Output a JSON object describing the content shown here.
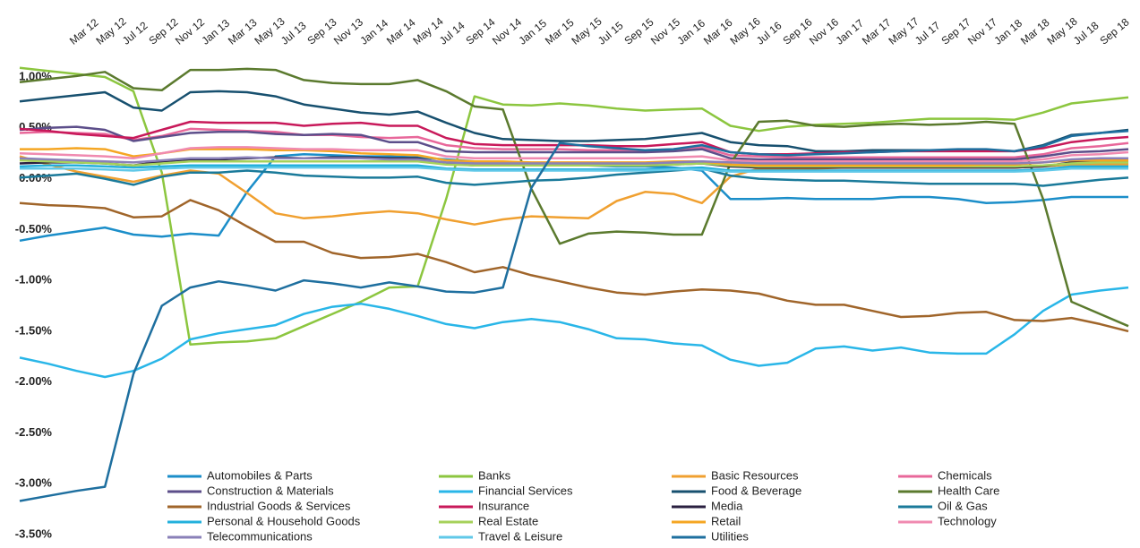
{
  "chart_data": {
    "type": "line",
    "categories": [
      "Mar 12",
      "May 12",
      "Jul 12",
      "Sep 12",
      "Nov 12",
      "Jan 13",
      "Mar 13",
      "May 13",
      "Jul 13",
      "Sep 13",
      "Nov 13",
      "Jan 14",
      "Mar 14",
      "May 14",
      "Jul 14",
      "Sep 14",
      "Nov 14",
      "Jan 15",
      "Mar 15",
      "May 15",
      "Jul 15",
      "Sep 15",
      "Nov 15",
      "Jan 16",
      "Mar 16",
      "May 16",
      "Jul 16",
      "Sep 16",
      "Nov 16",
      "Jan 17",
      "Mar 17",
      "May 17",
      "Jul 17",
      "Sep 17",
      "Nov 17",
      "Jan 18",
      "Mar 18",
      "May 18",
      "Jul 18",
      "Sep 18"
    ],
    "ylim": [
      -3.5,
      1.2
    ],
    "yticks": [
      {
        "value": 1.0,
        "label": "1.00%"
      },
      {
        "value": 0.5,
        "label": "0.50%"
      },
      {
        "value": 0,
        "label": "0.00%"
      },
      {
        "value": -0.5,
        "label": "-0.50%"
      },
      {
        "value": -1.0,
        "label": "-1.00%"
      },
      {
        "value": -1.5,
        "label": "-1.50%"
      },
      {
        "value": -2.0,
        "label": "-2.00%"
      },
      {
        "value": -2.5,
        "label": "-2.50%"
      },
      {
        "value": -3.0,
        "label": "-3.00%"
      },
      {
        "value": -3.5,
        "label": "-3.50%"
      }
    ],
    "grid": false,
    "legend": "bottom",
    "series": [
      {
        "name": "Automobiles & Parts",
        "color": "#1b8ec9",
        "values": [
          -0.61,
          -0.56,
          -0.52,
          -0.48,
          -0.55,
          -0.57,
          -0.54,
          -0.56,
          -0.13,
          0.22,
          0.24,
          0.23,
          0.22,
          0.22,
          0.21,
          0.19,
          0.17,
          0.16,
          0.15,
          0.14,
          0.13,
          0.12,
          0.12,
          0.11,
          0.08,
          -0.2,
          -0.2,
          -0.19,
          -0.2,
          -0.2,
          -0.2,
          -0.18,
          -0.18,
          -0.2,
          -0.24,
          -0.23,
          -0.21,
          -0.18,
          -0.18,
          -0.18
        ]
      },
      {
        "name": "Banks",
        "color": "#8cc63f",
        "values": [
          1.09,
          1.06,
          1.03,
          1.0,
          0.86,
          0.06,
          -1.63,
          -1.61,
          -1.6,
          -1.57,
          -1.45,
          -1.33,
          -1.21,
          -1.07,
          -1.06,
          -0.2,
          0.81,
          0.73,
          0.72,
          0.74,
          0.72,
          0.69,
          0.67,
          0.68,
          0.69,
          0.52,
          0.47,
          0.51,
          0.53,
          0.54,
          0.55,
          0.57,
          0.59,
          0.59,
          0.59,
          0.58,
          0.65,
          0.74,
          0.77,
          0.8
        ]
      },
      {
        "name": "Basic Resources",
        "color": "#f0a030",
        "values": [
          0.22,
          0.14,
          0.07,
          0.02,
          -0.03,
          0.03,
          0.08,
          0.05,
          -0.14,
          -0.34,
          -0.39,
          -0.37,
          -0.34,
          -0.32,
          -0.34,
          -0.4,
          -0.45,
          -0.4,
          -0.37,
          -0.38,
          -0.39,
          -0.22,
          -0.13,
          -0.15,
          -0.24,
          0.02,
          0.1,
          0.1,
          0.1,
          0.11,
          0.11,
          0.11,
          0.11,
          0.11,
          0.11,
          0.11,
          0.12,
          0.14,
          0.14,
          0.14
        ]
      },
      {
        "name": "Chemicals",
        "color": "#e8679a",
        "values": [
          0.45,
          0.46,
          0.45,
          0.44,
          0.38,
          0.42,
          0.49,
          0.48,
          0.47,
          0.46,
          0.43,
          0.43,
          0.41,
          0.4,
          0.41,
          0.33,
          0.3,
          0.29,
          0.29,
          0.29,
          0.28,
          0.28,
          0.28,
          0.29,
          0.31,
          0.23,
          0.22,
          0.21,
          0.21,
          0.21,
          0.21,
          0.21,
          0.21,
          0.21,
          0.21,
          0.21,
          0.24,
          0.3,
          0.32,
          0.35
        ]
      },
      {
        "name": "Construction & Materials",
        "color": "#5c4e8a",
        "values": [
          0.48,
          0.5,
          0.51,
          0.48,
          0.37,
          0.41,
          0.45,
          0.46,
          0.46,
          0.44,
          0.43,
          0.44,
          0.43,
          0.36,
          0.36,
          0.27,
          0.26,
          0.26,
          0.26,
          0.26,
          0.26,
          0.26,
          0.26,
          0.27,
          0.29,
          0.2,
          0.19,
          0.19,
          0.19,
          0.19,
          0.19,
          0.19,
          0.19,
          0.19,
          0.19,
          0.19,
          0.22,
          0.26,
          0.27,
          0.29
        ]
      },
      {
        "name": "Financial Services",
        "color": "#29b6e8",
        "values": [
          -1.76,
          -1.82,
          -1.89,
          -1.95,
          -1.89,
          -1.77,
          -1.58,
          -1.52,
          -1.48,
          -1.44,
          -1.33,
          -1.26,
          -1.23,
          -1.28,
          -1.35,
          -1.43,
          -1.47,
          -1.41,
          -1.38,
          -1.41,
          -1.48,
          -1.57,
          -1.58,
          -1.62,
          -1.64,
          -1.78,
          -1.84,
          -1.81,
          -1.67,
          -1.65,
          -1.69,
          -1.66,
          -1.71,
          -1.72,
          -1.72,
          -1.53,
          -1.3,
          -1.14,
          -1.1,
          -1.07
        ]
      },
      {
        "name": "Food & Beverage",
        "color": "#17506f",
        "values": [
          0.76,
          0.79,
          0.82,
          0.85,
          0.7,
          0.67,
          0.85,
          0.86,
          0.85,
          0.81,
          0.73,
          0.69,
          0.65,
          0.63,
          0.66,
          0.55,
          0.45,
          0.39,
          0.38,
          0.37,
          0.37,
          0.38,
          0.39,
          0.42,
          0.45,
          0.36,
          0.33,
          0.32,
          0.27,
          0.27,
          0.28,
          0.28,
          0.28,
          0.28,
          0.28,
          0.27,
          0.33,
          0.43,
          0.45,
          0.48
        ]
      },
      {
        "name": "Health Care",
        "color": "#5b7a2e",
        "values": [
          0.95,
          0.98,
          1.01,
          1.05,
          0.89,
          0.87,
          1.07,
          1.07,
          1.08,
          1.07,
          0.97,
          0.94,
          0.93,
          0.93,
          0.97,
          0.86,
          0.71,
          0.68,
          -0.1,
          -0.64,
          -0.54,
          -0.52,
          -0.53,
          -0.55,
          -0.55,
          0.15,
          0.56,
          0.57,
          0.52,
          0.51,
          0.53,
          0.54,
          0.53,
          0.54,
          0.56,
          0.54,
          -0.2,
          -1.21,
          -1.33,
          -1.45
        ]
      },
      {
        "name": "Industrial Goods & Services",
        "color": "#a0652a",
        "values": [
          -0.24,
          -0.26,
          -0.27,
          -0.29,
          -0.38,
          -0.37,
          -0.21,
          -0.31,
          -0.47,
          -0.62,
          -0.62,
          -0.73,
          -0.78,
          -0.77,
          -0.74,
          -0.82,
          -0.92,
          -0.87,
          -0.95,
          -1.01,
          -1.07,
          -1.12,
          -1.14,
          -1.11,
          -1.09,
          -1.1,
          -1.13,
          -1.2,
          -1.24,
          -1.24,
          -1.3,
          -1.36,
          -1.35,
          -1.32,
          -1.31,
          -1.39,
          -1.4,
          -1.37,
          -1.43,
          -1.5
        ]
      },
      {
        "name": "Insurance",
        "color": "#c8195a",
        "values": [
          0.49,
          0.47,
          0.44,
          0.42,
          0.4,
          0.48,
          0.56,
          0.55,
          0.55,
          0.55,
          0.52,
          0.54,
          0.55,
          0.52,
          0.52,
          0.4,
          0.34,
          0.33,
          0.33,
          0.33,
          0.33,
          0.32,
          0.32,
          0.34,
          0.36,
          0.26,
          0.24,
          0.24,
          0.25,
          0.26,
          0.26,
          0.27,
          0.27,
          0.27,
          0.27,
          0.27,
          0.3,
          0.36,
          0.39,
          0.41
        ]
      },
      {
        "name": "Media",
        "color": "#2a2040",
        "values": [
          0.15,
          0.16,
          0.16,
          0.15,
          0.13,
          0.17,
          0.19,
          0.19,
          0.2,
          0.21,
          0.2,
          0.21,
          0.21,
          0.2,
          0.2,
          0.15,
          0.13,
          0.13,
          0.13,
          0.13,
          0.13,
          0.13,
          0.13,
          0.14,
          0.15,
          0.12,
          0.11,
          0.11,
          0.11,
          0.11,
          0.11,
          0.11,
          0.11,
          0.11,
          0.11,
          0.11,
          0.12,
          0.16,
          0.17,
          0.17
        ]
      },
      {
        "name": "Oil & Gas",
        "color": "#1a7a9a",
        "values": [
          0.01,
          0.03,
          0.05,
          0.0,
          -0.06,
          0.02,
          0.06,
          0.06,
          0.08,
          0.06,
          0.03,
          0.02,
          0.01,
          0.01,
          0.02,
          -0.04,
          -0.06,
          -0.04,
          -0.02,
          -0.01,
          0.01,
          0.04,
          0.06,
          0.08,
          0.1,
          0.03,
          0.0,
          -0.01,
          -0.02,
          -0.02,
          -0.03,
          -0.04,
          -0.05,
          -0.05,
          -0.05,
          -0.05,
          -0.07,
          -0.04,
          -0.01,
          0.01
        ]
      },
      {
        "name": "Personal & Household Goods",
        "color": "#23b0dc",
        "values": [
          0.12,
          0.13,
          0.13,
          0.12,
          0.11,
          0.12,
          0.13,
          0.13,
          0.13,
          0.13,
          0.13,
          0.13,
          0.13,
          0.13,
          0.13,
          0.1,
          0.09,
          0.09,
          0.09,
          0.09,
          0.09,
          0.09,
          0.09,
          0.1,
          0.11,
          0.08,
          0.08,
          0.08,
          0.08,
          0.08,
          0.08,
          0.08,
          0.08,
          0.08,
          0.08,
          0.08,
          0.09,
          0.12,
          0.12,
          0.12
        ]
      },
      {
        "name": "Real Estate",
        "color": "#a6d15a",
        "values": [
          0.18,
          0.17,
          0.16,
          0.15,
          0.13,
          0.15,
          0.17,
          0.17,
          0.17,
          0.17,
          0.17,
          0.17,
          0.17,
          0.17,
          0.17,
          0.14,
          0.13,
          0.13,
          0.13,
          0.13,
          0.13,
          0.13,
          0.13,
          0.14,
          0.15,
          0.13,
          0.12,
          0.12,
          0.12,
          0.12,
          0.12,
          0.12,
          0.12,
          0.12,
          0.12,
          0.12,
          0.13,
          0.15,
          0.16,
          0.16
        ]
      },
      {
        "name": "Retail",
        "color": "#f5a623",
        "values": [
          0.29,
          0.29,
          0.3,
          0.29,
          0.22,
          0.25,
          0.29,
          0.29,
          0.29,
          0.28,
          0.28,
          0.27,
          0.25,
          0.24,
          0.23,
          0.18,
          0.17,
          0.17,
          0.16,
          0.16,
          0.16,
          0.16,
          0.16,
          0.17,
          0.17,
          0.14,
          0.13,
          0.13,
          0.13,
          0.13,
          0.13,
          0.13,
          0.13,
          0.13,
          0.14,
          0.14,
          0.16,
          0.18,
          0.18,
          0.18
        ]
      },
      {
        "name": "Technology",
        "color": "#f08ab0",
        "values": [
          0.25,
          0.24,
          0.23,
          0.22,
          0.2,
          0.25,
          0.3,
          0.31,
          0.31,
          0.3,
          0.29,
          0.29,
          0.28,
          0.28,
          0.28,
          0.22,
          0.2,
          0.2,
          0.2,
          0.2,
          0.2,
          0.2,
          0.2,
          0.21,
          0.22,
          0.18,
          0.17,
          0.17,
          0.17,
          0.17,
          0.17,
          0.17,
          0.17,
          0.17,
          0.17,
          0.17,
          0.19,
          0.23,
          0.24,
          0.26
        ]
      },
      {
        "name": "Telecommunications",
        "color": "#8a80b8",
        "values": [
          0.2,
          0.19,
          0.18,
          0.17,
          0.16,
          0.18,
          0.2,
          0.2,
          0.21,
          0.2,
          0.2,
          0.2,
          0.2,
          0.19,
          0.19,
          0.16,
          0.15,
          0.15,
          0.15,
          0.15,
          0.15,
          0.15,
          0.15,
          0.16,
          0.17,
          0.16,
          0.15,
          0.15,
          0.15,
          0.15,
          0.15,
          0.15,
          0.15,
          0.15,
          0.15,
          0.15,
          0.16,
          0.19,
          0.2,
          0.2
        ]
      },
      {
        "name": "Travel & Leisure",
        "color": "#60c8e8",
        "values": [
          0.1,
          0.1,
          0.1,
          0.09,
          0.08,
          0.1,
          0.11,
          0.11,
          0.11,
          0.11,
          0.11,
          0.11,
          0.11,
          0.11,
          0.11,
          0.09,
          0.08,
          0.08,
          0.08,
          0.08,
          0.08,
          0.08,
          0.08,
          0.09,
          0.09,
          0.07,
          0.07,
          0.07,
          0.07,
          0.07,
          0.07,
          0.07,
          0.07,
          0.07,
          0.07,
          0.07,
          0.08,
          0.1,
          0.1,
          0.1
        ]
      },
      {
        "name": "Utilities",
        "color": "#1e6f9f",
        "values": [
          -3.17,
          -3.12,
          -3.07,
          -3.03,
          -1.92,
          -1.25,
          -1.07,
          -1.01,
          -1.05,
          -1.1,
          -1.0,
          -1.03,
          -1.07,
          -1.02,
          -1.06,
          -1.11,
          -1.12,
          -1.07,
          -0.09,
          0.35,
          0.32,
          0.3,
          0.28,
          0.29,
          0.33,
          0.26,
          0.24,
          0.23,
          0.24,
          0.25,
          0.26,
          0.27,
          0.28,
          0.29,
          0.29,
          0.27,
          0.32,
          0.42,
          0.45,
          0.47
        ]
      }
    ]
  }
}
